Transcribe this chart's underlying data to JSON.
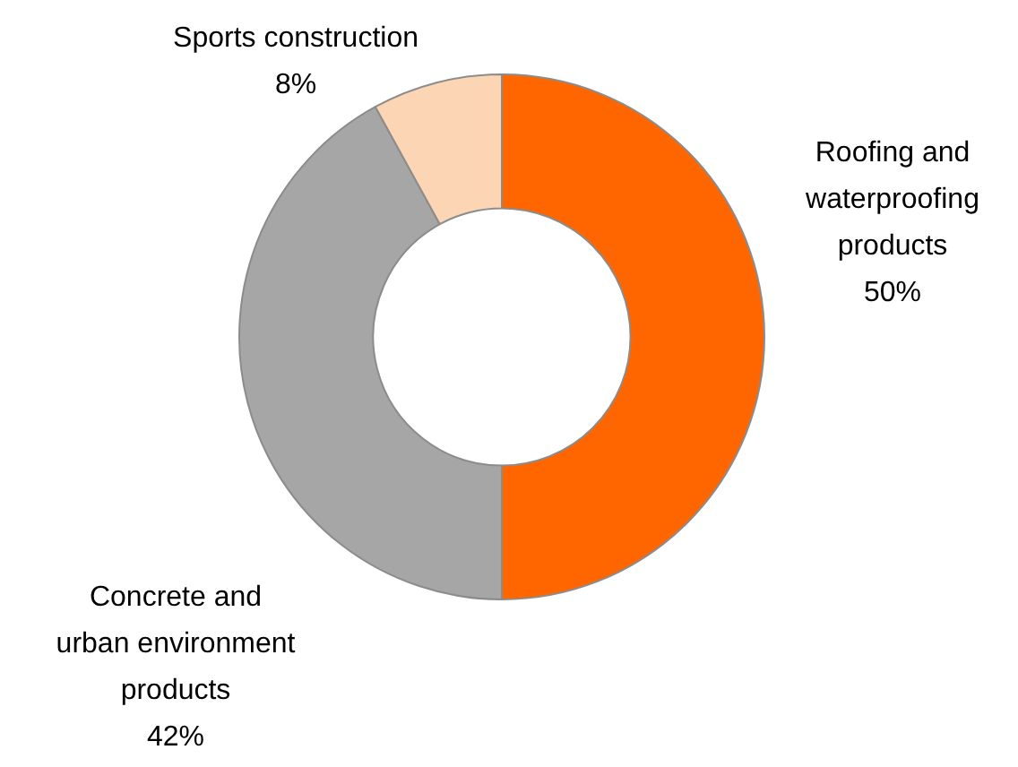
{
  "chart_data": {
    "type": "donut",
    "categories": [
      "Roofing and waterproofing products",
      "Concrete and urban environment products",
      "Sports construction"
    ],
    "values": [
      50,
      42,
      8
    ],
    "colors": [
      "#ff6600",
      "#a6a6a6",
      "#fcd5b4"
    ],
    "value_labels": [
      "50%",
      "42%",
      "8%"
    ]
  }
}
